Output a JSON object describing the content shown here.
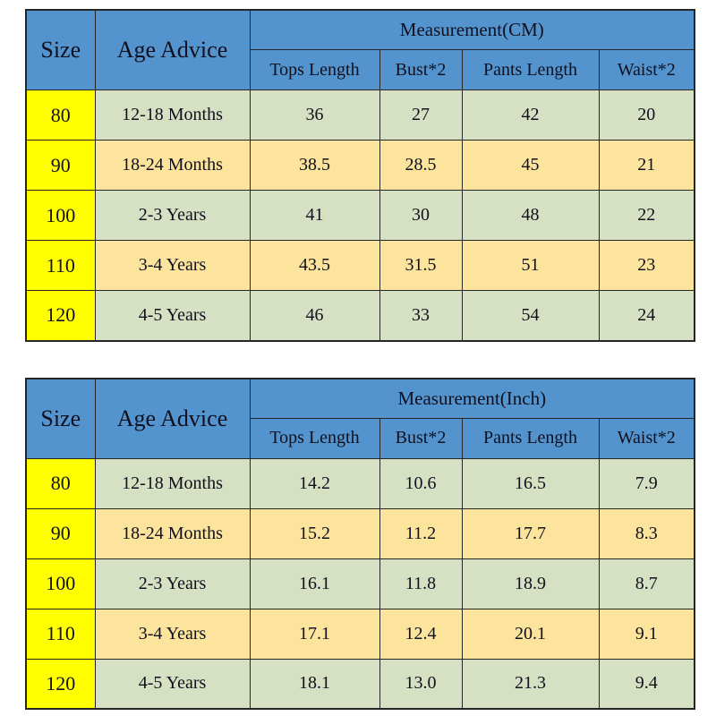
{
  "colors": {
    "header_blue": "#5494ce",
    "size_column_yellow": "#ffff00",
    "row_green": "#d6e0c2",
    "row_gold": "#fce49c",
    "border": "#262626",
    "text": "#10101e"
  },
  "chart_data": [
    {
      "type": "table",
      "title": "Measurement(CM)",
      "size_header": "Size",
      "age_header": "Age Advice",
      "columns": [
        "Tops Length",
        "Bust*2",
        "Pants Length",
        "Waist*2"
      ],
      "rows": [
        {
          "size": "80",
          "age": "12-18 Months",
          "values": [
            "36",
            "27",
            "42",
            "20"
          ]
        },
        {
          "size": "90",
          "age": "18-24 Months",
          "values": [
            "38.5",
            "28.5",
            "45",
            "21"
          ]
        },
        {
          "size": "100",
          "age": "2-3 Years",
          "values": [
            "41",
            "30",
            "48",
            "22"
          ]
        },
        {
          "size": "110",
          "age": "3-4 Years",
          "values": [
            "43.5",
            "31.5",
            "51",
            "23"
          ]
        },
        {
          "size": "120",
          "age": "4-5 Years",
          "values": [
            "46",
            "33",
            "54",
            "24"
          ]
        }
      ]
    },
    {
      "type": "table",
      "title": "Measurement(Inch)",
      "size_header": "Size",
      "age_header": "Age Advice",
      "columns": [
        "Tops Length",
        "Bust*2",
        "Pants Length",
        "Waist*2"
      ],
      "rows": [
        {
          "size": "80",
          "age": "12-18 Months",
          "values": [
            "14.2",
            "10.6",
            "16.5",
            "7.9"
          ]
        },
        {
          "size": "90",
          "age": "18-24 Months",
          "values": [
            "15.2",
            "11.2",
            "17.7",
            "8.3"
          ]
        },
        {
          "size": "100",
          "age": "2-3 Years",
          "values": [
            "16.1",
            "11.8",
            "18.9",
            "8.7"
          ]
        },
        {
          "size": "110",
          "age": "3-4 Years",
          "values": [
            "17.1",
            "12.4",
            "20.1",
            "9.1"
          ]
        },
        {
          "size": "120",
          "age": "4-5 Years",
          "values": [
            "18.1",
            "13.0",
            "21.3",
            "9.4"
          ]
        }
      ]
    }
  ]
}
